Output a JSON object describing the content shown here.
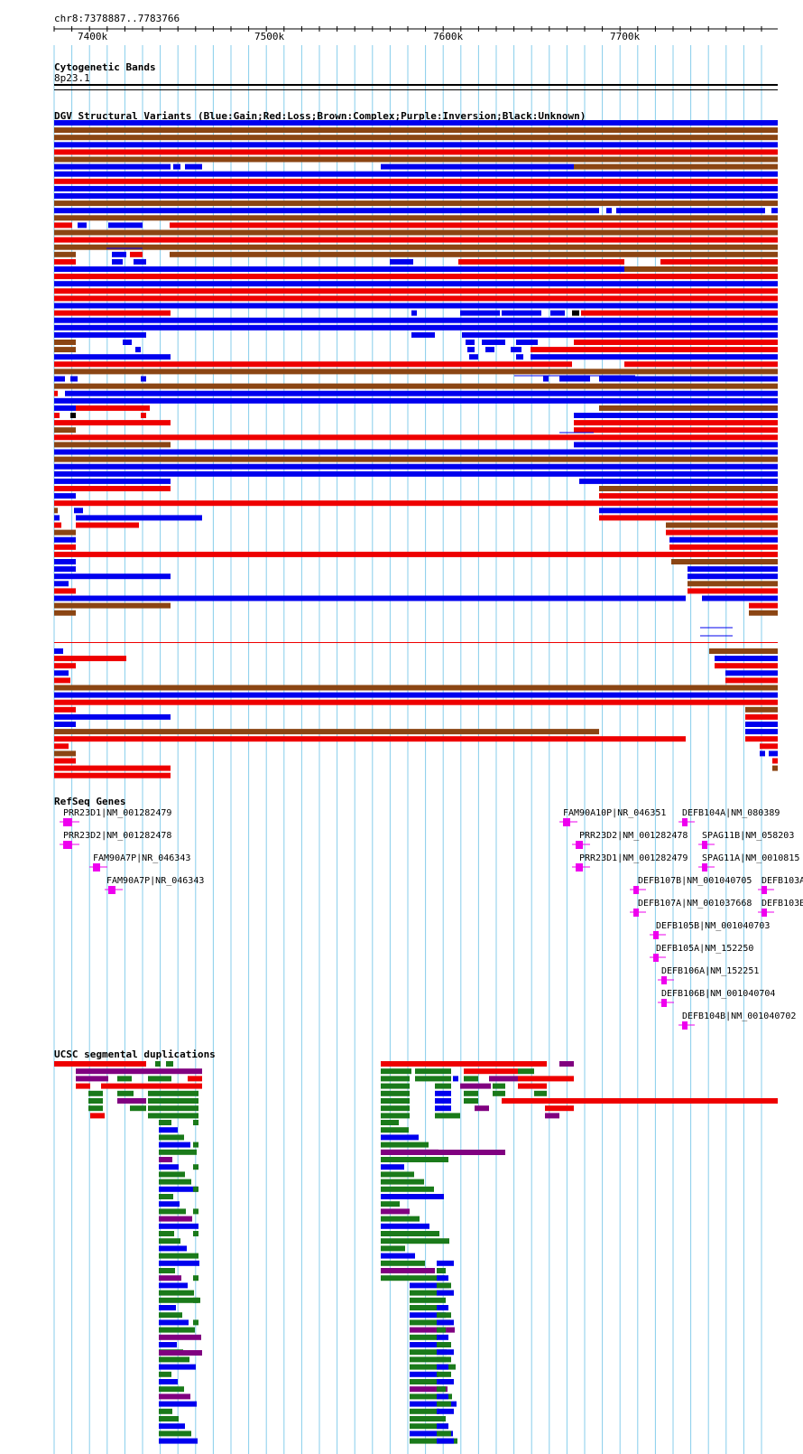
{
  "browser": {
    "position_label": "chr8:7378887..7783766",
    "axis_ticks": [
      "7400k",
      "7500k",
      "7600k",
      "7700k"
    ]
  },
  "colors": {
    "gain": "#0000ee",
    "loss": "#ee0000",
    "complex": "#8b4513",
    "inversion": "#800080",
    "unknown": "#000000",
    "gene": "#ee00ee",
    "segdup_green": "#1a7a1a",
    "segdup_blue": "#0000ee",
    "segdup_red": "#ee0000",
    "segdup_purple": "#800080",
    "grid": "#87ceeb"
  },
  "tracks": {
    "cytoband": {
      "title": "Cytogenetic Bands",
      "band": "8p23.1"
    },
    "dgv": {
      "title": "DGV Structural Variants (Blue:Gain;Red:Loss;Brown:Complex;Purple:Inversion;Black:Unknown)"
    },
    "refseq": {
      "title": "RefSeq Genes",
      "genes": [
        "PRR23D1|NM_001282479",
        "PRR23D2|NM_001282478",
        "FAM90A7P|NR_046343",
        "FAM90A7P|NR_046343",
        "FAM90A10P|NR_046351",
        "DEFB104A|NM_080389",
        "PRR23D2|NM_001282478",
        "SPAG11B|NM_058203",
        "PRR23D1|NM_001282479",
        "SPAG11A|NM_0010815",
        "DEFB107B|NM_001040705",
        "DEFB103A",
        "DEFB107A|NM_001037668",
        "DEFB103B",
        "DEFB105B|NM_001040703",
        "DEFB105A|NM_152250",
        "DEFB106A|NM_152251",
        "DEFB106B|NM_001040704",
        "DEFB104B|NM_001040702"
      ]
    },
    "segdup": {
      "title": "UCSC segmental duplications"
    }
  }
}
